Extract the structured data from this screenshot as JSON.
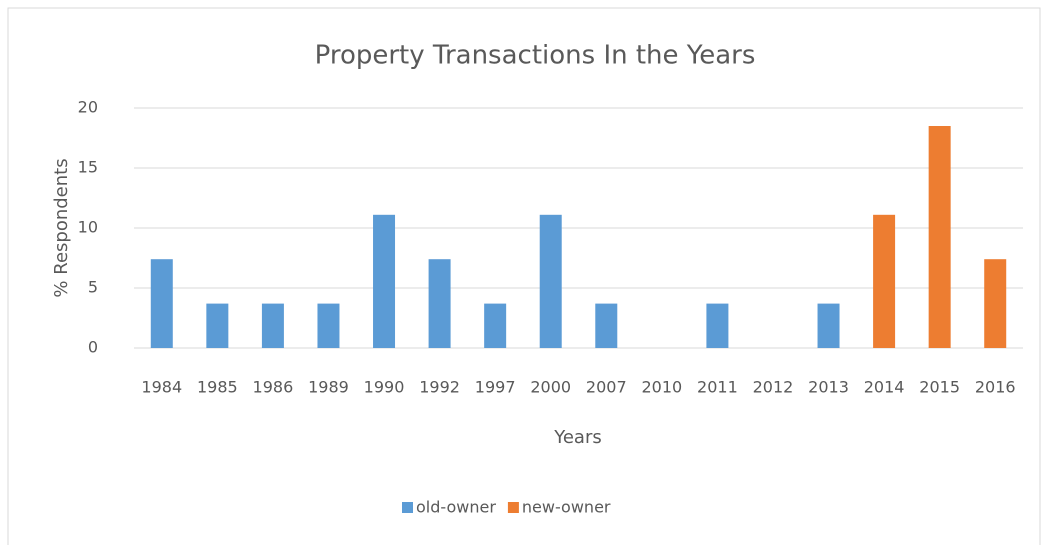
{
  "chart_data": {
    "type": "bar",
    "title": "Property Transactions In the Years",
    "x_label": "Years",
    "y_label": "% Respondents",
    "categories": [
      "1984",
      "1985",
      "1986",
      "1989",
      "1990",
      "1992",
      "1997",
      "2000",
      "2007",
      "2010",
      "2011",
      "2012",
      "2013",
      "2014",
      "2015",
      "2016"
    ],
    "series": [
      {
        "name": "old-owner",
        "color": "#5b9bd5",
        "values": [
          7.4,
          3.7,
          3.7,
          3.7,
          11.1,
          7.4,
          3.7,
          11.1,
          3.7,
          0,
          3.7,
          0,
          3.7,
          null,
          null,
          null
        ]
      },
      {
        "name": "new-owner",
        "color": "#ed7d31",
        "values": [
          null,
          null,
          null,
          null,
          null,
          null,
          null,
          null,
          null,
          null,
          null,
          null,
          null,
          11.1,
          18.5,
          7.4
        ]
      }
    ],
    "ylim": [
      0,
      20
    ],
    "yticks": [
      0,
      5,
      10,
      15,
      20
    ],
    "grid": true,
    "legend": "bottom"
  }
}
